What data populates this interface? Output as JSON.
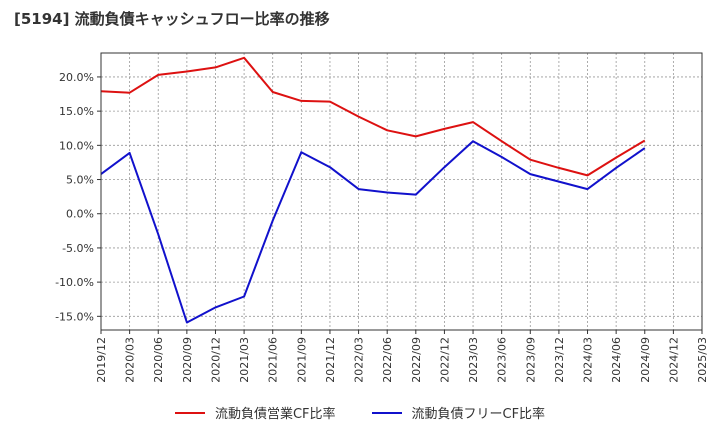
{
  "chart_data": {
    "type": "line",
    "title": "[5194]  流動負債キャッシュフロー比率の推移",
    "xlabel": "",
    "ylabel": "",
    "ylim": [
      -17,
      23.5
    ],
    "yticks": [
      20,
      15,
      10,
      5,
      0,
      -5,
      -10,
      -15
    ],
    "ytick_labels": [
      "20.0%",
      "15.0%",
      "10.0%",
      "5.0%",
      "0.0%",
      "-5.0%",
      "-10.0%",
      "-15.0%"
    ],
    "x_labels": [
      "2019/12",
      "2020/03",
      "2020/06",
      "2020/09",
      "2020/12",
      "2021/03",
      "2021/06",
      "2021/09",
      "2021/12",
      "2022/03",
      "2022/06",
      "2022/09",
      "2022/12",
      "2023/03",
      "2023/06",
      "2023/09",
      "2023/12",
      "2024/03",
      "2024/06",
      "2024/09",
      "2024/12",
      "2025/03"
    ],
    "grid": true,
    "legend_position": "bottom",
    "series": [
      {
        "name": "流動負債営業CF比率",
        "color": "#dd1111",
        "values": [
          17.9,
          17.7,
          20.3,
          20.8,
          21.4,
          22.8,
          17.8,
          16.5,
          16.4,
          14.2,
          12.2,
          11.3,
          12.4,
          13.4,
          10.6,
          7.9,
          6.7,
          5.6,
          8.2,
          10.7,
          null,
          null
        ]
      },
      {
        "name": "流動負債フリーCF比率",
        "color": "#1111cc",
        "values": [
          5.8,
          8.9,
          -3.0,
          -15.9,
          -13.7,
          -12.1,
          -1.0,
          9.0,
          6.8,
          3.6,
          3.1,
          2.8,
          6.8,
          10.6,
          8.3,
          5.8,
          4.7,
          3.6,
          6.7,
          9.6,
          null,
          null
        ]
      }
    ]
  }
}
